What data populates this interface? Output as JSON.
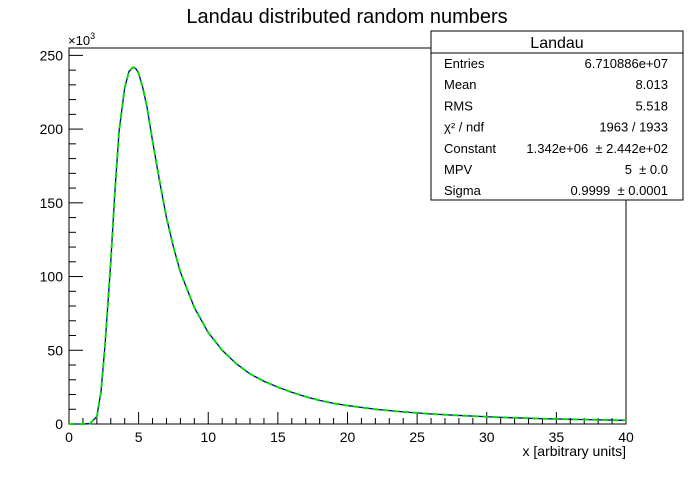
{
  "chart_data": {
    "type": "line",
    "title": "Landau distributed random numbers",
    "xlabel": "x [arbitrary units]",
    "ylabel": "",
    "y_multiplier_label": "×10",
    "y_multiplier_exp": "3",
    "xlim": [
      0,
      40
    ],
    "ylim": [
      0,
      255
    ],
    "x_ticks": [
      0,
      5,
      10,
      15,
      20,
      25,
      30,
      35,
      40
    ],
    "x_tick_labels": [
      "0",
      "5",
      "10",
      "15",
      "20",
      "25",
      "30",
      "35",
      "40"
    ],
    "y_ticks": [
      0,
      50,
      100,
      150,
      200,
      250
    ],
    "y_tick_labels": [
      "0",
      "50",
      "100",
      "150",
      "200",
      "250"
    ],
    "grid": false,
    "series": [
      {
        "role": "histogram",
        "color": "#00008b",
        "x": [
          0,
          1.0,
          1.5,
          2.0,
          2.3,
          2.6,
          3.0,
          3.3,
          3.6,
          4.0,
          4.3,
          4.6,
          4.8,
          5.0,
          5.3,
          5.6,
          6.0,
          6.5,
          7.0,
          7.5,
          8.0,
          9.0,
          10.0,
          11.0,
          12.0,
          13.0,
          14.0,
          15.0,
          16.0,
          17.0,
          18.0,
          19.0,
          20.0,
          22.0,
          24.0,
          26.0,
          28.0,
          30.0,
          32.0,
          34.0,
          36.0,
          38.0,
          40.0
        ],
        "values": [
          0,
          0,
          0.3,
          5,
          22,
          55,
          110,
          158,
          199,
          228,
          239,
          242,
          241,
          238,
          228,
          215,
          192,
          165,
          140,
          120,
          103,
          79,
          62,
          50,
          41,
          34,
          29,
          25,
          21.5,
          18.5,
          16,
          14,
          12.5,
          10,
          8.2,
          6.8,
          5.8,
          4.9,
          4.2,
          3.6,
          3.2,
          2.8,
          2.5
        ]
      },
      {
        "role": "fit",
        "color": "#00dd00",
        "dashed": true,
        "x": [
          0,
          1.0,
          1.5,
          2.0,
          2.3,
          2.6,
          3.0,
          3.3,
          3.6,
          4.0,
          4.3,
          4.6,
          4.8,
          5.0,
          5.3,
          5.6,
          6.0,
          6.5,
          7.0,
          7.5,
          8.0,
          9.0,
          10.0,
          11.0,
          12.0,
          13.0,
          14.0,
          15.0,
          16.0,
          17.0,
          18.0,
          19.0,
          20.0,
          22.0,
          24.0,
          26.0,
          28.0,
          30.0,
          32.0,
          34.0,
          36.0,
          38.0,
          40.0
        ],
        "values": [
          0,
          0,
          0.3,
          5,
          22,
          55,
          110,
          158,
          199,
          228,
          239,
          242,
          241,
          238,
          228,
          215,
          192,
          165,
          140,
          120,
          103,
          79,
          62,
          50,
          41,
          34,
          29,
          25,
          21.5,
          18.5,
          16,
          14,
          12.5,
          10,
          8.2,
          6.8,
          5.8,
          4.9,
          4.2,
          3.6,
          3.2,
          2.8,
          2.5
        ]
      }
    ],
    "stats_box": {
      "title": "Landau",
      "placement": "top-right",
      "rows": [
        {
          "label": "Entries",
          "value": "6.710886e+07"
        },
        {
          "label": "Mean",
          "value": "8.013"
        },
        {
          "label": "RMS",
          "value": "5.518"
        },
        {
          "label": "χ² / ndf",
          "value": "1963 / 1933"
        },
        {
          "label": "Constant",
          "value": "1.342e+06  ± 2.442e+02"
        },
        {
          "label": "MPV",
          "value": "5  ± 0.0"
        },
        {
          "label": "Sigma",
          "value": "0.9999  ± 0.0001"
        }
      ]
    }
  }
}
